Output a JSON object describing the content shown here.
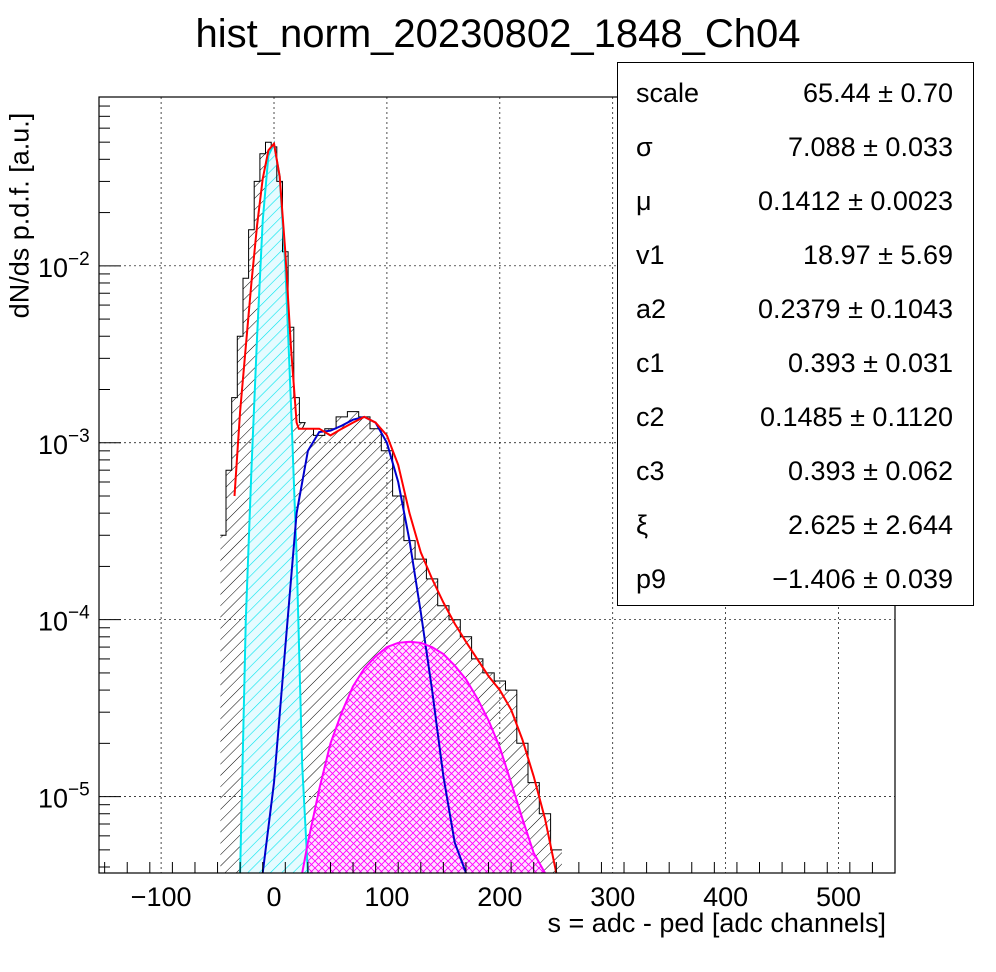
{
  "title": "hist_norm_20230802_1848_Ch04",
  "stats": [
    {
      "name": "scale",
      "value": "65.44",
      "error": "0.70"
    },
    {
      "name": "σ",
      "value": "7.088",
      "error": "0.033"
    },
    {
      "name": "μ",
      "value": "0.1412",
      "error": "0.0023"
    },
    {
      "name": "v1",
      "value": "18.97",
      "error": "5.69"
    },
    {
      "name": "a2",
      "value": "0.2379",
      "error": "0.1043"
    },
    {
      "name": "c1",
      "value": "0.393",
      "error": "0.031"
    },
    {
      "name": "c2",
      "value": "0.1485",
      "error": "0.1120"
    },
    {
      "name": "c3",
      "value": "0.393",
      "error": "0.062"
    },
    {
      "name": "ξ",
      "value": "2.625",
      "error": "2.644"
    },
    {
      "name": "p9",
      "value": "−1.406",
      "error": "0.039"
    }
  ],
  "colors": {
    "histogram": "#000000",
    "total_fit": "#ff0000",
    "pedestal": "#00e5ee",
    "single_pe": "#0000cc",
    "multi_pe": "#ff00ff",
    "grid": "#000000"
  },
  "chart_data": {
    "type": "line",
    "title": "hist_norm_20230802_1848_Ch04",
    "xlabel": "s = adc - ped [adc channels]",
    "ylabel": "dN/ds p.d.f. [a.u.]",
    "xlim": [
      -155,
      550
    ],
    "ylim": [
      3.7e-06,
      0.09
    ],
    "yscale": "log",
    "grid": true,
    "x_ticks": [
      "−100",
      "0",
      "100",
      "200",
      "300",
      "400",
      "500"
    ],
    "x_tick_values": [
      -100,
      0,
      100,
      200,
      300,
      400,
      500
    ],
    "y_ticks": [
      {
        "base": "10",
        "exp": "−5",
        "value": 1e-05
      },
      {
        "base": "10",
        "exp": "−4",
        "value": 0.0001
      },
      {
        "base": "10",
        "exp": "−3",
        "value": 0.001
      },
      {
        "base": "10",
        "exp": "−2",
        "value": 0.01
      }
    ],
    "series": [
      {
        "kind": "histogram",
        "x": [
          -45,
          -40,
          -35,
          -30,
          -25,
          -20,
          -15,
          -10,
          -5,
          0,
          5,
          10,
          15,
          20,
          25,
          30,
          40,
          50,
          60,
          70,
          80,
          90,
          100,
          110,
          120,
          130,
          140,
          150,
          160,
          170,
          180,
          190,
          200,
          210,
          220,
          230,
          240,
          250
        ],
        "y": [
          0.0003,
          0.0007,
          0.0018,
          0.004,
          0.0085,
          0.016,
          0.03,
          0.043,
          0.05,
          0.047,
          0.03,
          0.012,
          0.0045,
          0.0018,
          0.0013,
          0.0012,
          0.0011,
          0.0012,
          0.0014,
          0.0015,
          0.0014,
          0.0012,
          0.0009,
          0.0005,
          0.00028,
          0.00022,
          0.00017,
          0.00012,
          0.0001,
          8e-05,
          6e-05,
          5e-05,
          4.5e-05,
          4e-05,
          2e-05,
          1.2e-05,
          8e-06,
          5e-06
        ]
      },
      {
        "name": "",
        "kind": "total",
        "x": [
          -35,
          -30,
          -25,
          -20,
          -15,
          -10,
          -5,
          0,
          5,
          10,
          15,
          20,
          22,
          25,
          30,
          40,
          50,
          60,
          70,
          80,
          90,
          100,
          110,
          120,
          130,
          140,
          150,
          160,
          170,
          180,
          190,
          200,
          210,
          220,
          230,
          240,
          250
        ],
        "y": [
          0.0005,
          0.0015,
          0.0035,
          0.008,
          0.017,
          0.031,
          0.045,
          0.049,
          0.032,
          0.012,
          0.0035,
          0.0013,
          0.0012,
          0.0012,
          0.0012,
          0.0012,
          0.0011,
          0.0012,
          0.0013,
          0.0014,
          0.0013,
          0.0011,
          0.00075,
          0.0004,
          0.00024,
          0.00017,
          0.000125,
          9.5e-05,
          7.5e-05,
          6e-05,
          4.8e-05,
          4e-05,
          3.1e-05,
          2.1e-05,
          1.3e-05,
          7.5e-06,
          3.7e-06
        ]
      },
      {
        "name": "",
        "kind": "pedestal",
        "x": [
          -30,
          -25,
          -20,
          -15,
          -10,
          -5,
          0,
          5,
          10,
          15,
          20,
          25,
          30
        ],
        "y": [
          3.7e-06,
          0.0001,
          0.0007,
          0.004,
          0.018,
          0.042,
          0.049,
          0.032,
          0.01,
          0.0017,
          0.00023,
          1.5e-05,
          3.7e-06
        ]
      },
      {
        "name": "",
        "kind": "single_pe",
        "x": [
          -10,
          0,
          10,
          20,
          30,
          40,
          50,
          60,
          70,
          80,
          90,
          100,
          110,
          120,
          130,
          140,
          150,
          160,
          170
        ],
        "y": [
          3.7e-06,
          1.2e-05,
          7e-05,
          0.0004,
          0.0009,
          0.00115,
          0.00117,
          0.00125,
          0.00135,
          0.0014,
          0.0013,
          0.001,
          0.0006,
          0.00028,
          0.00011,
          4e-05,
          1.3e-05,
          5.5e-06,
          3.7e-06
        ]
      },
      {
        "name": "",
        "kind": "multi_pe",
        "x": [
          25,
          30,
          40,
          50,
          60,
          70,
          80,
          90,
          100,
          110,
          120,
          130,
          140,
          150,
          160,
          170,
          180,
          190,
          200,
          210,
          220,
          230,
          240
        ],
        "y": [
          3.7e-06,
          5.5e-06,
          1.1e-05,
          2e-05,
          3e-05,
          4.2e-05,
          5.3e-05,
          6.2e-05,
          7e-05,
          7.4e-05,
          7.5e-05,
          7.4e-05,
          7e-05,
          6.4e-05,
          5.5e-05,
          4.6e-05,
          3.6e-05,
          2.7e-05,
          1.9e-05,
          1.2e-05,
          7.5e-06,
          4.8e-06,
          3.7e-06
        ]
      }
    ]
  }
}
